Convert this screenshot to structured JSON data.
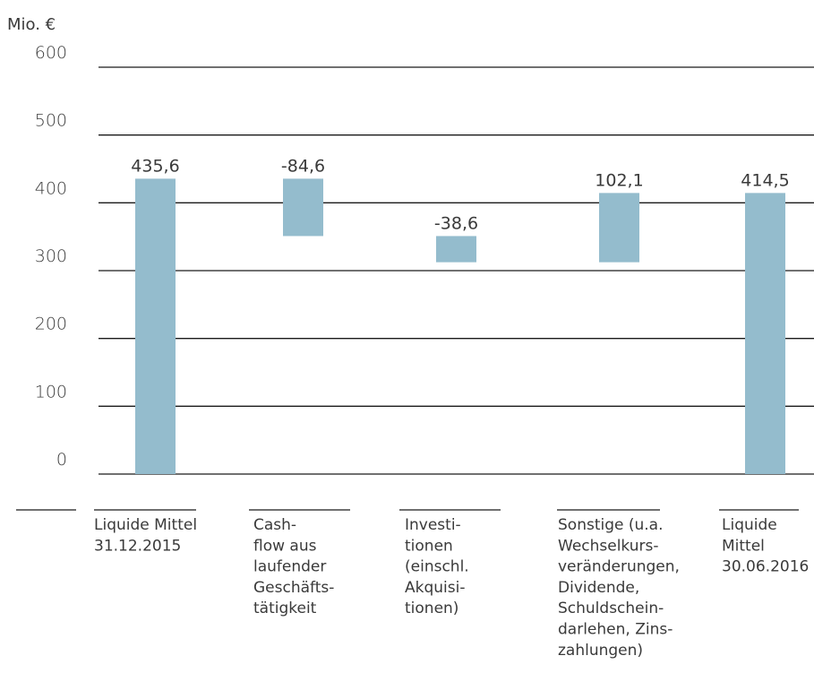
{
  "chart_data": {
    "type": "bar",
    "subtype": "waterfall",
    "unit_label": "Mio. €",
    "ylim": [
      0,
      600
    ],
    "yticks": [
      0,
      100,
      200,
      300,
      400,
      500,
      600
    ],
    "ytick_labels": [
      "0",
      "100",
      "200",
      "300",
      "400",
      "500",
      "600"
    ],
    "grid": true,
    "bar_color": "#94bccd",
    "categories": [
      [
        "Liquide Mittel",
        "31.12.2015"
      ],
      [
        "Cash-",
        "flow aus",
        "laufender",
        "Geschäfts-",
        "tätigkeit"
      ],
      [
        "Investi-",
        "tionen",
        "(einschl.",
        "Akquisi-",
        "tionen)"
      ],
      [
        "Sonstige (u.a.",
        "Wechselkurs-",
        "veränderungen,",
        "Dividende,",
        "Schuldschein-",
        "darlehen, Zins-",
        "zahlungen)"
      ],
      [
        "Liquide",
        "Mittel",
        "30.06.2016"
      ]
    ],
    "bars": [
      {
        "start": 0,
        "end": 435.6,
        "label": "435,6"
      },
      {
        "start": 435.6,
        "end": 351.0,
        "label": "-84,6"
      },
      {
        "start": 351.0,
        "end": 312.4,
        "label": "-38,6"
      },
      {
        "start": 312.4,
        "end": 414.5,
        "label": "102,1"
      },
      {
        "start": 0,
        "end": 414.5,
        "label": "414,5"
      }
    ]
  }
}
